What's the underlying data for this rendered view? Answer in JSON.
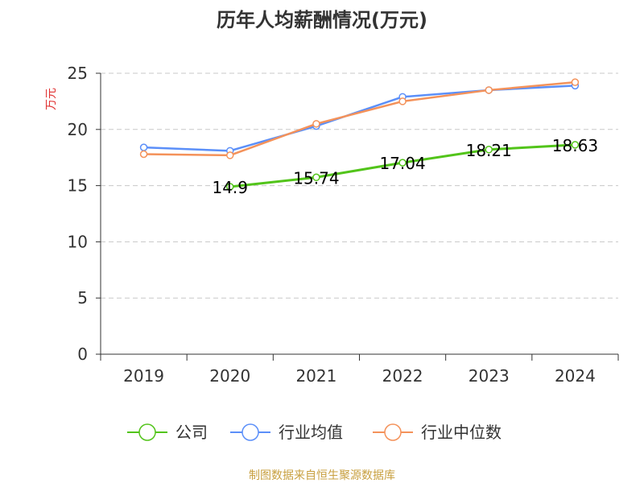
{
  "chart_data": {
    "type": "line",
    "title": "历年人均薪酬情况(万元)",
    "ylabel": "万元",
    "xlabel": "",
    "categories": [
      "2019",
      "2020",
      "2021",
      "2022",
      "2023",
      "2024"
    ],
    "ylim": [
      0,
      25
    ],
    "yticks": [
      0,
      5,
      10,
      15,
      20,
      25
    ],
    "grid": true,
    "legend_position": "bottom",
    "series": [
      {
        "name": "公司",
        "color": "#52c41a",
        "values": [
          null,
          14.9,
          15.74,
          17.04,
          18.21,
          18.63
        ],
        "labels": [
          null,
          "14.9",
          "15.74",
          "17.04",
          "18.21",
          "18.63"
        ]
      },
      {
        "name": "行业均值",
        "color": "#5b8ff9",
        "values": [
          18.4,
          18.1,
          20.3,
          22.9,
          23.5,
          23.9
        ]
      },
      {
        "name": "行业中位数",
        "color": "#f4925a",
        "values": [
          17.8,
          17.7,
          20.5,
          22.5,
          23.5,
          24.2
        ]
      }
    ]
  },
  "source_text": "制图数据来自恒生聚源数据库"
}
